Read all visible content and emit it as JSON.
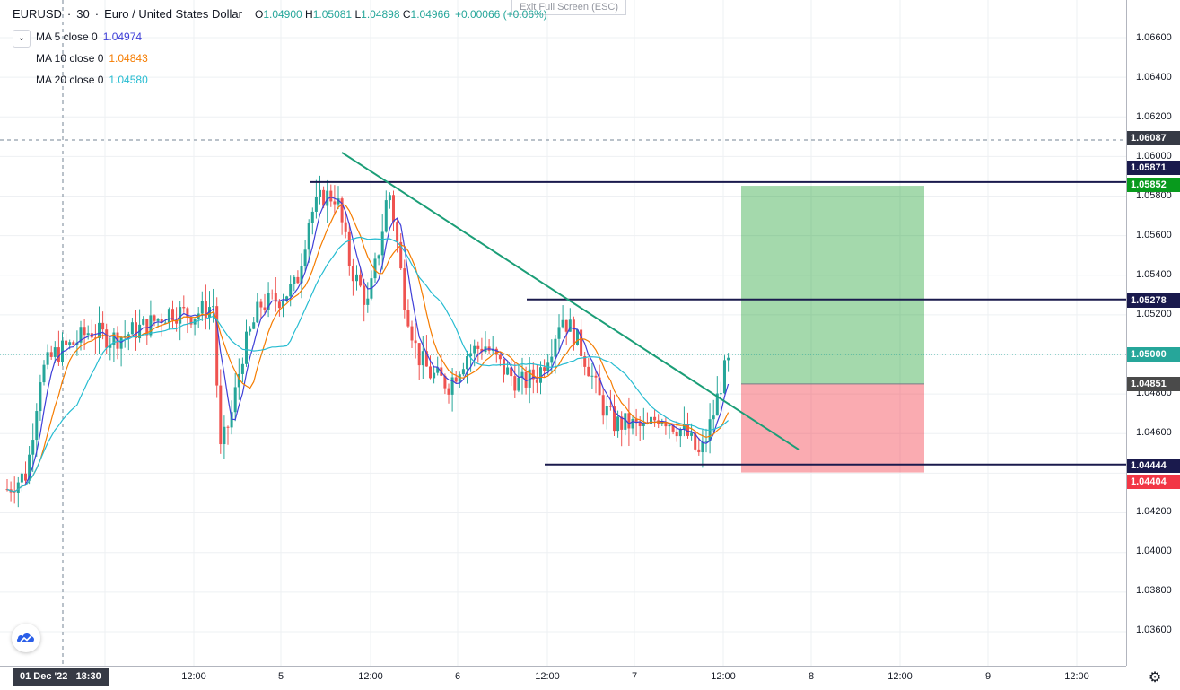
{
  "legend": {
    "symbol": "EURUSD",
    "interval": "30",
    "description": "Euro / United States Dollar",
    "ohlc": {
      "o_label": "O",
      "o": "1.04900",
      "h_label": "H",
      "h": "1.05081",
      "l_label": "L",
      "l": "1.04898",
      "c_label": "C",
      "c": "1.04966"
    },
    "change": "+0.00066 (+0.06%)",
    "ma": [
      {
        "label": "MA 5 close 0",
        "value": "1.04974",
        "color": "#3f3fd8"
      },
      {
        "label": "MA 10 close 0",
        "value": "1.04843",
        "color": "#f57c00"
      },
      {
        "label": "MA 20 close 0",
        "value": "1.04580",
        "color": "#26bcd1"
      }
    ]
  },
  "exit_fullscreen": "Exit Full Screen (ESC)",
  "price_axis": {
    "ticks": [
      "1.06600",
      "1.06400",
      "1.06200",
      "1.06000",
      "1.05800",
      "1.05600",
      "1.05400",
      "1.05200",
      "1.04800",
      "1.04600",
      "1.04200",
      "1.04000",
      "1.03800",
      "1.03600"
    ]
  },
  "price_tags": [
    {
      "value": "1.06087",
      "bg": "#363a45"
    },
    {
      "value": "1.05871",
      "bg": "#1a1a4d"
    },
    {
      "value": "1.05852",
      "bg": "#089a1d"
    },
    {
      "value": "1.05278",
      "bg": "#1a1a4d"
    },
    {
      "value": "1.05000",
      "bg": "#26a69a"
    },
    {
      "value": "1.04851",
      "bg": "#4a4a4a"
    },
    {
      "value": "1.04444",
      "bg": "#1a1a4d"
    },
    {
      "value": "1.04404",
      "bg": "#f23645"
    }
  ],
  "time_axis": {
    "labels": [
      "12:00",
      "5",
      "12:00",
      "6",
      "12:00",
      "7",
      "12:00",
      "8",
      "12:00",
      "9",
      "12:00"
    ]
  },
  "cursor": {
    "date": "01 Dec '22",
    "time": "18:30"
  },
  "chart_data": {
    "type": "candlestick",
    "symbol": "EURUSD",
    "interval": "30",
    "y_range": [
      1.035,
      1.067
    ],
    "current_price": 1.05,
    "candles_approx": [
      {
        "t": "start",
        "o": 1.044,
        "h": 1.045,
        "l": 1.042,
        "c": 1.043
      },
      {
        "t": "swing-high-5",
        "o": 1.0575,
        "h": 1.0585,
        "l": 1.0565,
        "c": 1.058
      },
      {
        "t": "peak-5",
        "o": 1.058,
        "h": 1.0593,
        "l": 1.056,
        "c": 1.0565
      },
      {
        "t": "swing-6",
        "o": 1.052,
        "h": 1.0529,
        "l": 1.05,
        "c": 1.051
      },
      {
        "t": "low-7",
        "o": 1.045,
        "h": 1.046,
        "l": 1.0442,
        "c": 1.0455
      },
      {
        "t": "last",
        "o": 1.049,
        "h": 1.05081,
        "l": 1.04898,
        "c": 1.04966
      }
    ],
    "horizontal_lines": [
      1.05871,
      1.05278,
      1.04444
    ],
    "trendline": {
      "from": [
        1.0602
      ],
      "to": [
        1.0452
      ]
    },
    "position": {
      "type": "long",
      "entry": 1.04851,
      "target": 1.05852,
      "stop": 1.04404
    }
  }
}
